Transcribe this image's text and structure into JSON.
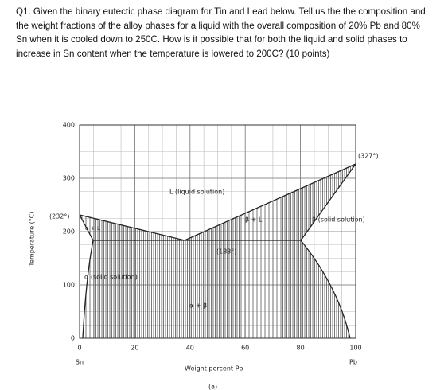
{
  "question": {
    "lines": [
      "Q1. Given the binary eutectic phase diagram for Tin and Lead below. Tell us the the composition and",
      "the weight fractions of the alloy phases for a liquid with the overall composition of 20% Pb and 80%",
      "Sn when it is cooled down to 250C. How is it possible that for both the liquid and solid phases to",
      "increase in Sn content when the temperature is lowered to 200C? (10 points)"
    ]
  },
  "diagram": {
    "y_axis_label": "Temperature (°C)",
    "x_axis_label": "Weight percent Pb",
    "x_left_label": "Sn",
    "x_right_label": "Pb",
    "xticks": [
      0,
      20,
      40,
      60,
      80,
      100
    ],
    "yticks": [
      0,
      100,
      200,
      300,
      400
    ],
    "xlim": [
      0,
      100
    ],
    "ylim": [
      0,
      400
    ],
    "labels": {
      "pb_melting": "(327°)",
      "liquid": "L (liquid solution)",
      "beta_liquid": "β + L",
      "beta": "β (solid solution)",
      "sn_melting": "(232°)",
      "alpha_liquid": "α + L",
      "eutectic": "(183°)",
      "alpha": "α (solid solution)",
      "alpha_beta": "α + β"
    },
    "caption": "(a)"
  }
}
